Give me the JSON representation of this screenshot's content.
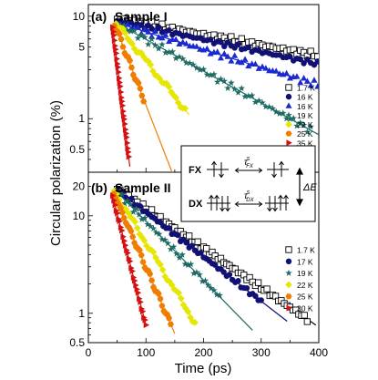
{
  "figure": {
    "ylabel": "Circular polarization (%)",
    "xlabel": "Time (ps)",
    "x_ticks": [
      "0",
      "100",
      "200",
      "300",
      "400"
    ]
  },
  "inset": {
    "fx_label": "FX",
    "dx_label": "DX",
    "tau_fx": "τ",
    "tau_fx_sup": "s",
    "tau_fx_sub": "FX",
    "tau_dx": "τ",
    "tau_dx_sup": "s",
    "tau_dx_sub": "DX",
    "delta_e": "ΔE"
  },
  "chart_data": [
    {
      "type": "scatter",
      "panel_label": "(a)",
      "title": "Sample I",
      "scale": "log",
      "xlim": [
        0,
        400
      ],
      "ylim": [
        0.3,
        13
      ],
      "y_ticks": [
        {
          "value": 0.5,
          "label": "0.5"
        },
        {
          "value": 1,
          "label": "1"
        },
        {
          "value": 5,
          "label": "5"
        },
        {
          "value": 10,
          "label": "10"
        }
      ],
      "legend_position": "right",
      "series": [
        {
          "name": "1.7 K",
          "marker": "open-square",
          "color": "#000000",
          "t0": 50,
          "y0": 9.5,
          "tau": 420,
          "spread": 0.07,
          "fit_end": 400,
          "t_end": 400,
          "step": 6
        },
        {
          "name": "16 K",
          "marker": "circle",
          "color": "#101075",
          "t0": 50,
          "y0": 9.0,
          "tau": 360,
          "spread": 0.06,
          "fit_end": 400,
          "t_end": 400,
          "step": 6
        },
        {
          "name": "16 K",
          "marker": "triangle",
          "color": "#1a2ad0",
          "t0": 50,
          "y0": 8.6,
          "tau": 250,
          "spread": 0.08,
          "fit_end": 360,
          "t_end": 400,
          "step": 6
        },
        {
          "name": "19 K",
          "marker": "star",
          "color": "#1d6b62",
          "t0": 50,
          "y0": 8.5,
          "tau": 140,
          "spread": 0.09,
          "fit_end": 400,
          "t_end": 390,
          "step": 6
        },
        {
          "name": "22 K",
          "marker": "diamond",
          "color": "#e6e600",
          "t0": 48,
          "y0": 8.5,
          "tau": 62,
          "spread": 0.08,
          "fit_end": 175,
          "t_end": 170,
          "step": 4
        },
        {
          "name": "25 K",
          "marker": "hexagon",
          "color": "#f07d00",
          "t0": 45,
          "y0": 8.5,
          "tau": 30,
          "spread": 0.07,
          "fit_end": 170,
          "t_end": 98,
          "step": 3
        },
        {
          "name": "35 K",
          "marker": "triangle-right",
          "color": "#d41010",
          "t0": 42,
          "y0": 8.0,
          "tau": 9.5,
          "spread": 0.03,
          "fit_end": 72,
          "t_end": 70,
          "step": 1
        }
      ]
    },
    {
      "type": "scatter",
      "panel_label": "(b)",
      "title": "Sample II",
      "scale": "log",
      "xlim": [
        0,
        400
      ],
      "ylim": [
        0.5,
        28
      ],
      "y_ticks": [
        {
          "value": 0.5,
          "label": "0.5"
        },
        {
          "value": 1,
          "label": "1"
        },
        {
          "value": 10,
          "label": "10"
        },
        {
          "value": 20,
          "label": "20"
        }
      ],
      "legend_position": "right",
      "series": [
        {
          "name": "1.7 K",
          "marker": "open-square",
          "color": "#000000",
          "t0": 50,
          "y0": 19,
          "tau": 107,
          "spread": 0.07,
          "fit_end": 395,
          "t_end": 380,
          "step": 5
        },
        {
          "name": "17 K",
          "marker": "circle",
          "color": "#101075",
          "t0": 50,
          "y0": 18.5,
          "tau": 95,
          "spread": 0.06,
          "fit_end": 345,
          "t_end": 300,
          "step": 5
        },
        {
          "name": "19 K",
          "marker": "star",
          "color": "#1d6b62",
          "t0": 48,
          "y0": 18,
          "tau": 72,
          "spread": 0.09,
          "fit_end": 285,
          "t_end": 230,
          "step": 5
        },
        {
          "name": "22 K",
          "marker": "diamond",
          "color": "#e6e600",
          "t0": 45,
          "y0": 18,
          "tau": 45,
          "spread": 0.08,
          "fit_end": 185,
          "t_end": 185,
          "step": 4
        },
        {
          "name": "25 K",
          "marker": "hexagon",
          "color": "#f07d00",
          "t0": 44,
          "y0": 17,
          "tau": 32,
          "spread": 0.07,
          "fit_end": 150,
          "t_end": 145,
          "step": 3
        },
        {
          "name": "30 K",
          "marker": "triangle-right",
          "color": "#d41010",
          "t0": 42,
          "y0": 16,
          "tau": 19,
          "spread": 0.04,
          "fit_end": 100,
          "t_end": 100,
          "step": 2
        }
      ]
    }
  ]
}
